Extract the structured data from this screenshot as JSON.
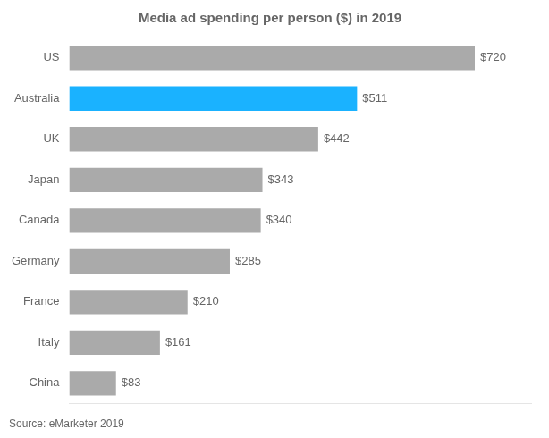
{
  "chart_data": {
    "type": "bar",
    "orientation": "horizontal",
    "title": "Media ad spending per person ($) in 2019",
    "annotations": [
      "Source: eMarketer 2019"
    ],
    "categories": [
      "US",
      "Australia",
      "UK",
      "Japan",
      "Canada",
      "Germany",
      "France",
      "Italy",
      "China"
    ],
    "values": [
      720,
      511,
      442,
      343,
      340,
      285,
      210,
      161,
      83
    ],
    "value_labels": [
      "$720",
      "$511",
      "$442",
      "$343",
      "$340",
      "$285",
      "$210",
      "$161",
      "$83"
    ],
    "colors": [
      "#aaaaaa",
      "#1ab2ff",
      "#aaaaaa",
      "#aaaaaa",
      "#aaaaaa",
      "#aaaaaa",
      "#aaaaaa",
      "#aaaaaa",
      "#aaaaaa"
    ],
    "xlim": [
      0,
      820
    ],
    "data_labels": true,
    "tick_labels": "y",
    "grid": false
  }
}
